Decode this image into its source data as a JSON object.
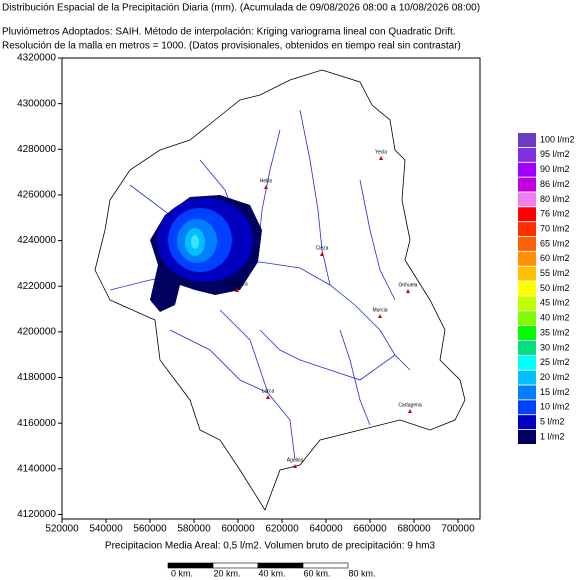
{
  "header": {
    "title": "Distribución Espacial de la Precipitación Diaria (mm). (Acumulada de 09/08/2026 08:00 a 10/08/2026 08:00)",
    "method": "Pluviómetros Adoptados: SAIH.  Método de interpolación: Kriging variograma lineal con Quadratic Drift.",
    "resolution": "Resolución de la malla en metros = 1000. (Datos provisionales, obtenidos en tiempo real sin contrastar)"
  },
  "map": {
    "xlim": [
      520000,
      710000
    ],
    "ylim": [
      4118000,
      4320000
    ],
    "xticks": [
      520000,
      540000,
      560000,
      580000,
      600000,
      620000,
      640000,
      660000,
      680000,
      700000
    ],
    "yticks": [
      4120000,
      4140000,
      4160000,
      4180000,
      4200000,
      4220000,
      4240000,
      4260000,
      4280000,
      4300000,
      4320000
    ],
    "cities": [
      "Hellin",
      "Yecla",
      "Cieza",
      "Caravaca",
      "Orihuela",
      "Murcia",
      "Lorca",
      "Cartagena",
      "Aguilas"
    ]
  },
  "legend": {
    "items": [
      {
        "label": "100 l/m2",
        "color": "#6a3cc8"
      },
      {
        "label": "95 l/m2",
        "color": "#8030e0"
      },
      {
        "label": "90 l/m2",
        "color": "#a000ff"
      },
      {
        "label": "86 l/m2",
        "color": "#c000e0"
      },
      {
        "label": "80 l/m2",
        "color": "#f080f0"
      },
      {
        "label": "76 l/m2",
        "color": "#ff0000"
      },
      {
        "label": "70 l/m2",
        "color": "#ff3000"
      },
      {
        "label": "65 l/m2",
        "color": "#ff6000"
      },
      {
        "label": "60 l/m2",
        "color": "#ff9000"
      },
      {
        "label": "55 l/m2",
        "color": "#ffc000"
      },
      {
        "label": "50 l/m2",
        "color": "#ffff00"
      },
      {
        "label": "45 l/m2",
        "color": "#c0ff00"
      },
      {
        "label": "40 l/m2",
        "color": "#80ff00"
      },
      {
        "label": "35 l/m2",
        "color": "#00ff00"
      },
      {
        "label": "30 l/m2",
        "color": "#00e080"
      },
      {
        "label": "25 l/m2",
        "color": "#00ffff"
      },
      {
        "label": "20 l/m2",
        "color": "#00c0ff"
      },
      {
        "label": "15 l/m2",
        "color": "#0080ff"
      },
      {
        "label": "10 l/m2",
        "color": "#0040ff"
      },
      {
        "label": "5 l/m2",
        "color": "#0000c0"
      },
      {
        "label": "1 l/m2",
        "color": "#000060"
      }
    ]
  },
  "footer": {
    "summary": "Precipitacion Media Areal: 0,5 l/m2. Volumen bruto de precipitación: 9 hm3",
    "scale": [
      "0 km.",
      "20 km.",
      "40 km.",
      "60 km.",
      "80 km."
    ]
  }
}
